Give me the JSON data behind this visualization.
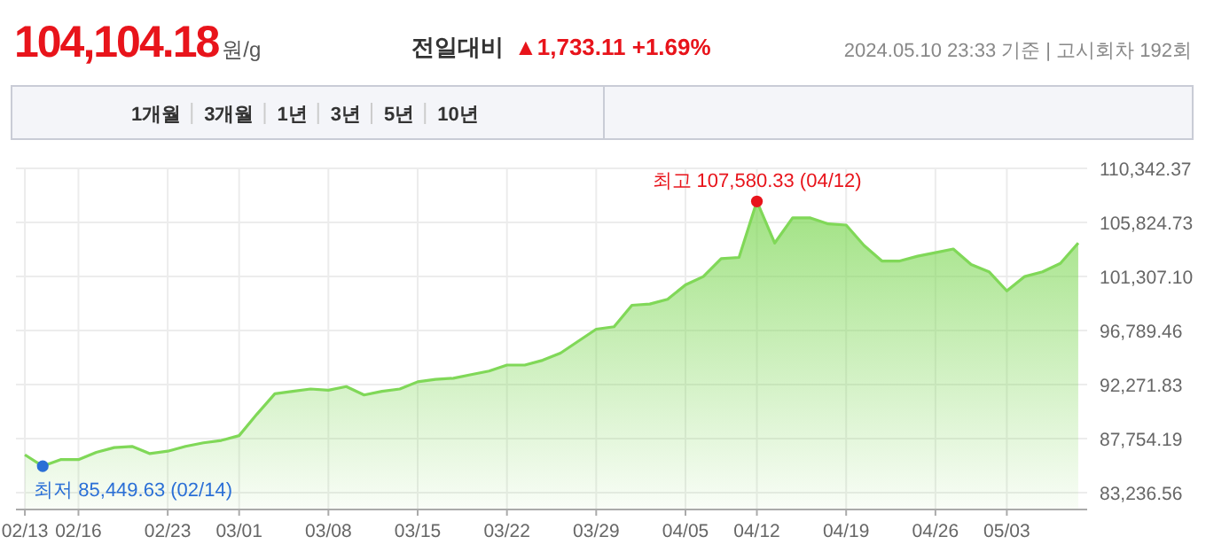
{
  "chart_data": {
    "type": "area",
    "title": "104,104.18원/g",
    "subtitle": "전일대비 ▲1,733.11 +1.69%",
    "categories": [
      "02/13",
      null,
      null,
      "02/16",
      null,
      null,
      null,
      null,
      "02/23",
      null,
      null,
      null,
      "03/01",
      null,
      null,
      null,
      null,
      "03/08",
      null,
      null,
      null,
      null,
      "03/15",
      null,
      null,
      null,
      null,
      "03/22",
      null,
      null,
      null,
      null,
      "03/29",
      null,
      null,
      null,
      null,
      "04/05",
      null,
      null,
      null,
      "04/12",
      null,
      null,
      null,
      null,
      "04/19",
      null,
      null,
      null,
      null,
      "04/26",
      null,
      null,
      null,
      "05/03",
      null,
      null,
      null,
      null
    ],
    "series": [
      {
        "color": "#80d858",
        "values": [
          86400,
          85449.63,
          86000,
          86000,
          86600,
          87000,
          87100,
          86500,
          86700,
          87100,
          87400,
          87600,
          88000,
          89800,
          91500,
          91700,
          91900,
          91800,
          92100,
          91400,
          91700,
          91900,
          92500,
          92700,
          92800,
          93100,
          93400,
          93900,
          93900,
          94300,
          94900,
          95900,
          96900,
          97100,
          98900,
          99000,
          99400,
          100600,
          101300,
          102800,
          102900,
          107580.33,
          104100,
          106200,
          106200,
          105700,
          105600,
          103900,
          102600,
          102600,
          103000,
          103300,
          103600,
          102300,
          101700,
          100100,
          101300,
          101700,
          102400,
          104104.18
        ]
      }
    ],
    "ylim": [
      81900,
      110342.37
    ],
    "yticks": [
      {
        "value": 83236.56,
        "label": "83,236.56"
      },
      {
        "value": 87754.19,
        "label": "87,754.19"
      },
      {
        "value": 92271.83,
        "label": "92,271.83"
      },
      {
        "value": 96789.46,
        "label": "96,789.46"
      },
      {
        "value": 101307.1,
        "label": "101,307.10"
      },
      {
        "value": 105824.73,
        "label": "105,824.73"
      },
      {
        "value": 110342.37,
        "label": "110,342.37"
      }
    ],
    "grid": true,
    "annotations": [
      "2024.05.10 23:33 기준 | 고시회차 192회",
      "최저 85,449.63 (02/14)",
      "1개월",
      "3개월",
      "1년",
      "3년",
      "5년",
      "10년",
      {
        "text": "최고 107,580.33 (04/12)",
        "x": "04/12",
        "y": 107580.33
      }
    ]
  }
}
